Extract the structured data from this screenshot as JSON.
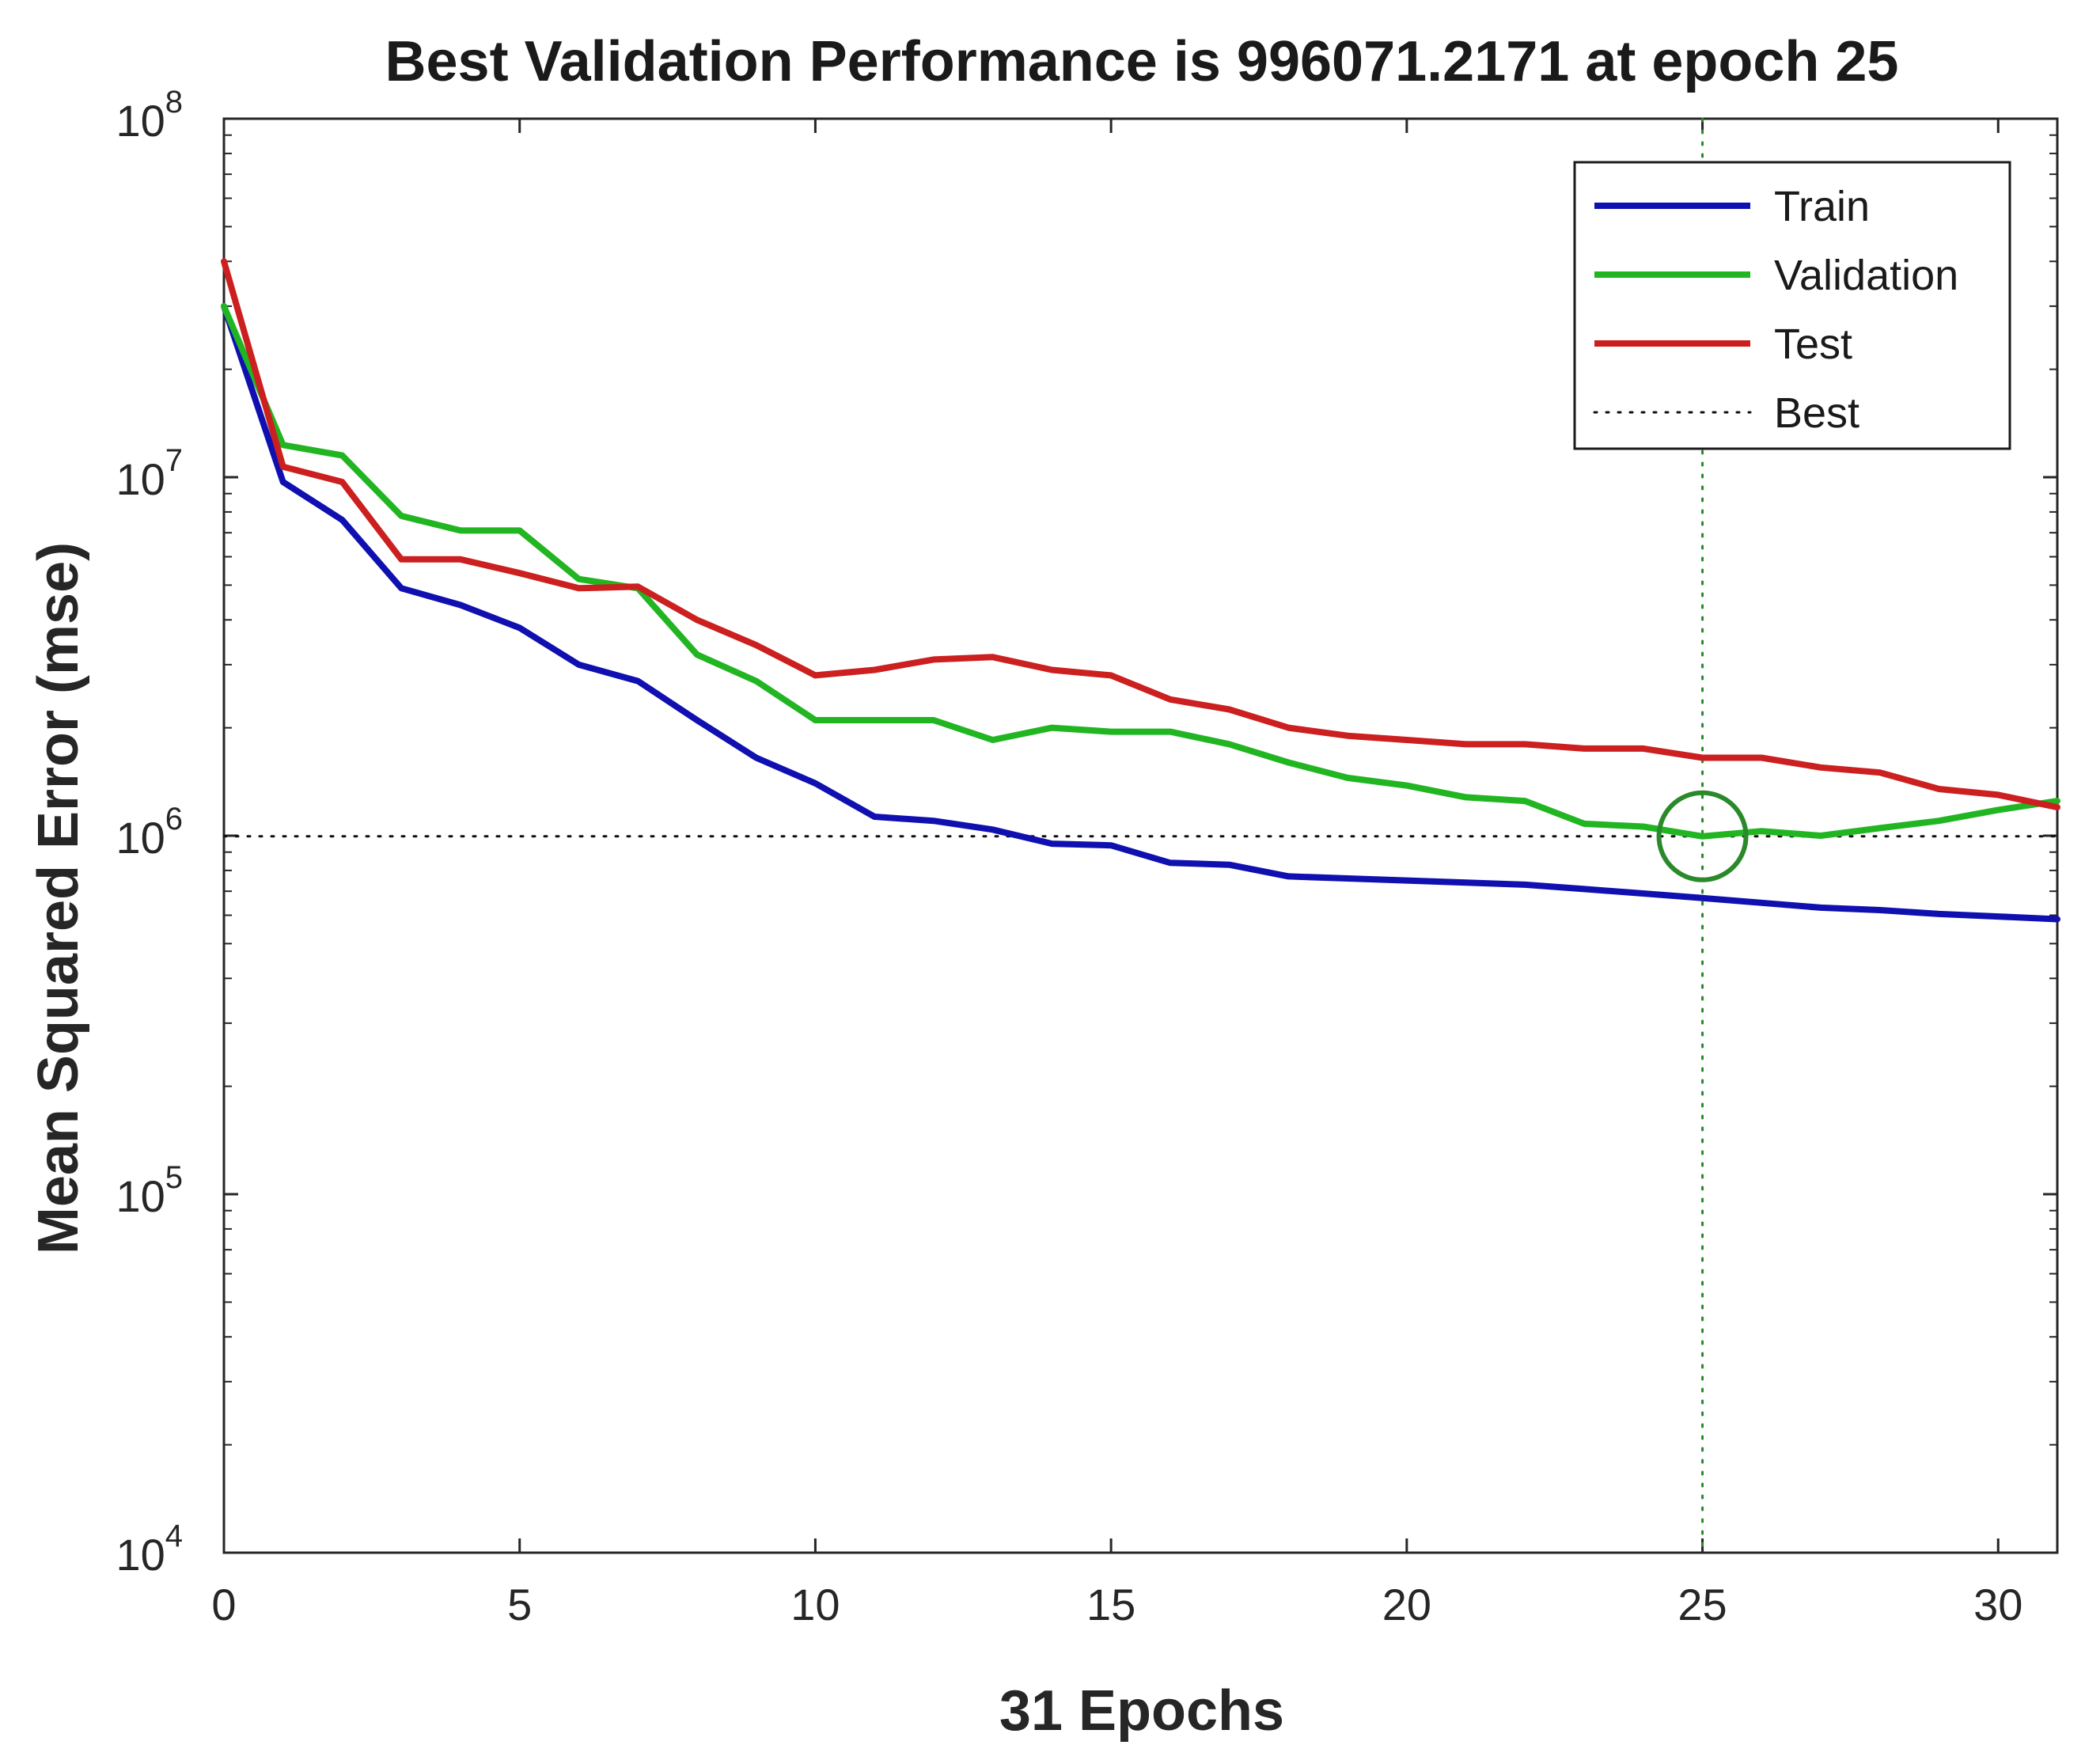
{
  "chart_data": {
    "type": "line",
    "title": "Best Validation Performance is 996071.2171 at epoch 25",
    "xlabel": "31 Epochs",
    "ylabel": "Mean Squared Error  (mse)",
    "yscale": "log",
    "xlim": [
      0,
      31
    ],
    "ylim": [
      10000,
      100000000
    ],
    "x_ticks": [
      0,
      5,
      10,
      15,
      20,
      25,
      30
    ],
    "y_ticks": [
      {
        "value": 10000,
        "base": "10",
        "exp": "4"
      },
      {
        "value": 100000,
        "base": "10",
        "exp": "5"
      },
      {
        "value": 1000000,
        "base": "10",
        "exp": "6"
      },
      {
        "value": 10000000,
        "base": "10",
        "exp": "7"
      },
      {
        "value": 100000000,
        "base": "10",
        "exp": "8"
      }
    ],
    "x": [
      0,
      1,
      2,
      3,
      4,
      5,
      6,
      7,
      8,
      9,
      10,
      11,
      12,
      13,
      14,
      15,
      16,
      17,
      18,
      19,
      20,
      21,
      22,
      23,
      24,
      25,
      26,
      27,
      28,
      29,
      30,
      31
    ],
    "series": [
      {
        "name": "Train",
        "color": "#1010b0",
        "values": [
          30000000,
          9700000,
          7600000,
          4900000,
          4400000,
          3800000,
          3000000,
          2700000,
          2100000,
          1650000,
          1400000,
          1130000,
          1100000,
          1040000,
          950000,
          940000,
          840000,
          830000,
          770000,
          760000,
          750000,
          740000,
          730000,
          710000,
          690000,
          670000,
          650000,
          630000,
          620000,
          605000,
          595000,
          585000
        ]
      },
      {
        "name": "Validation",
        "color": "#22b522",
        "values": [
          30000000,
          12300000,
          11500000,
          7800000,
          7100000,
          7100000,
          5200000,
          4900000,
          3200000,
          2700000,
          2100000,
          2100000,
          2100000,
          1850000,
          2000000,
          1950000,
          1950000,
          1800000,
          1600000,
          1450000,
          1380000,
          1280000,
          1250000,
          1080000,
          1060000,
          996071.2171,
          1030000,
          1000000,
          1050000,
          1100000,
          1180000,
          1250000
        ]
      },
      {
        "name": "Test",
        "color": "#cc1f1f",
        "values": [
          40000000,
          10700000,
          9700000,
          5900000,
          5900000,
          5400000,
          4900000,
          4950000,
          4000000,
          3400000,
          2800000,
          2900000,
          3100000,
          3150000,
          2900000,
          2800000,
          2400000,
          2250000,
          2000000,
          1900000,
          1850000,
          1800000,
          1800000,
          1750000,
          1750000,
          1650000,
          1650000,
          1550000,
          1500000,
          1350000,
          1300000,
          1200000
        ]
      }
    ],
    "best": {
      "label": "Best",
      "epoch": 25,
      "value": 996071.2171,
      "color": "#2a8a2a"
    },
    "legend": {
      "position": "top-right",
      "entries": [
        "Train",
        "Validation",
        "Test",
        "Best"
      ]
    },
    "grid": false
  }
}
